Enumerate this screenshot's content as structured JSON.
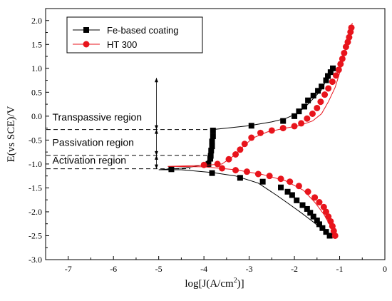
{
  "chart_data": {
    "type": "line",
    "xlabel": "log[J(A/cm2)]",
    "xlabel_main": "log[J(A/cm",
    "xlabel_sup": "2",
    "xlabel_end": ")]",
    "ylabel": "E(vs SCE)/V",
    "xlim": [
      -7.5,
      0
    ],
    "ylim": [
      -3.0,
      2.25
    ],
    "x_ticks": [
      -7,
      -6,
      -5,
      -4,
      -3,
      -2,
      -1,
      0
    ],
    "x_tick_labels": [
      "-7",
      "-6",
      "-5",
      "-4",
      "-3",
      "-2",
      "-1",
      "0"
    ],
    "y_ticks": [
      -3.0,
      -2.5,
      -2.0,
      -1.5,
      -1.0,
      -0.5,
      0.0,
      0.5,
      1.0,
      1.5,
      2.0
    ],
    "y_tick_labels": [
      "-3.0",
      "-2.5",
      "-2.0",
      "-1.5",
      "-1.0",
      "-0.5",
      "0.0",
      "0.5",
      "1.0",
      "1.5",
      "2.0"
    ],
    "grid": false,
    "legend_position": "top-left",
    "series": [
      {
        "name": "Fe-based coating",
        "color": "#000000",
        "marker": "square",
        "curve": [
          [
            -1.22,
            -2.5
          ],
          [
            -1.4,
            -2.35
          ],
          [
            -1.6,
            -2.2
          ],
          [
            -1.85,
            -2.02
          ],
          [
            -2.1,
            -1.85
          ],
          [
            -2.4,
            -1.65
          ],
          [
            -2.8,
            -1.4
          ],
          [
            -3.3,
            -1.25
          ],
          [
            -3.8,
            -1.18
          ],
          [
            -4.5,
            -1.12
          ],
          [
            -5.0,
            -1.12
          ],
          [
            -4.4,
            -1.08
          ],
          [
            -4.0,
            -1.02
          ],
          [
            -3.9,
            -0.9
          ],
          [
            -3.85,
            -0.7
          ],
          [
            -3.8,
            -0.5
          ],
          [
            -3.8,
            -0.28
          ],
          [
            -3.5,
            -0.25
          ],
          [
            -3.0,
            -0.2
          ],
          [
            -2.5,
            -0.12
          ],
          [
            -2.2,
            -0.05
          ],
          [
            -1.95,
            0.05
          ],
          [
            -1.75,
            0.2
          ],
          [
            -1.55,
            0.4
          ],
          [
            -1.4,
            0.55
          ],
          [
            -1.3,
            0.75
          ],
          [
            -1.2,
            0.9
          ],
          [
            -1.15,
            1.0
          ]
        ],
        "markers": [
          [
            -1.22,
            -2.5
          ],
          [
            -1.3,
            -2.42
          ],
          [
            -1.38,
            -2.34
          ],
          [
            -1.45,
            -2.26
          ],
          [
            -1.5,
            -2.18
          ],
          [
            -1.58,
            -2.1
          ],
          [
            -1.65,
            -2.02
          ],
          [
            -1.72,
            -1.94
          ],
          [
            -1.82,
            -1.86
          ],
          [
            -1.95,
            -1.76
          ],
          [
            -2.05,
            -1.65
          ],
          [
            -2.15,
            -1.58
          ],
          [
            -2.3,
            -1.49
          ],
          [
            -2.7,
            -1.37
          ],
          [
            -3.2,
            -1.29
          ],
          [
            -3.82,
            -1.19
          ],
          [
            -4.72,
            -1.11
          ],
          [
            -3.9,
            -1.0
          ],
          [
            -3.86,
            -0.89
          ],
          [
            -3.85,
            -0.83
          ],
          [
            -3.84,
            -0.72
          ],
          [
            -3.82,
            -0.63
          ],
          [
            -3.82,
            -0.53
          ],
          [
            -3.8,
            -0.42
          ],
          [
            -3.8,
            -0.3
          ],
          [
            -2.95,
            -0.2
          ],
          [
            -2.25,
            -0.1
          ],
          [
            -2.0,
            0.0
          ],
          [
            -1.9,
            0.1
          ],
          [
            -1.78,
            0.2
          ],
          [
            -1.7,
            0.33
          ],
          [
            -1.58,
            0.43
          ],
          [
            -1.48,
            0.53
          ],
          [
            -1.4,
            0.62
          ],
          [
            -1.3,
            0.75
          ],
          [
            -1.26,
            0.84
          ],
          [
            -1.2,
            0.92
          ],
          [
            -1.15,
            1.0
          ]
        ]
      },
      {
        "name": "HT 300",
        "color": "#e8141c",
        "marker": "circle",
        "curve": [
          [
            -1.1,
            -2.5
          ],
          [
            -1.2,
            -2.3
          ],
          [
            -1.35,
            -2.05
          ],
          [
            -1.55,
            -1.8
          ],
          [
            -1.8,
            -1.55
          ],
          [
            -2.2,
            -1.35
          ],
          [
            -2.7,
            -1.22
          ],
          [
            -3.3,
            -1.12
          ],
          [
            -4.0,
            -1.06
          ],
          [
            -4.8,
            -1.05
          ],
          [
            -4.0,
            -1.03
          ],
          [
            -3.6,
            -1.0
          ],
          [
            -3.3,
            -0.8
          ],
          [
            -3.1,
            -0.6
          ],
          [
            -2.9,
            -0.45
          ],
          [
            -2.6,
            -0.33
          ],
          [
            -2.2,
            -0.25
          ],
          [
            -1.9,
            -0.2
          ],
          [
            -1.6,
            -0.1
          ],
          [
            -1.4,
            0.05
          ],
          [
            -1.25,
            0.3
          ],
          [
            -1.1,
            0.6
          ],
          [
            -1.0,
            0.9
          ],
          [
            -0.92,
            1.2
          ],
          [
            -0.85,
            1.45
          ],
          [
            -0.78,
            1.7
          ],
          [
            -0.72,
            1.95
          ]
        ],
        "markers": [
          [
            -1.1,
            -2.5
          ],
          [
            -1.13,
            -2.4
          ],
          [
            -1.16,
            -2.3
          ],
          [
            -1.2,
            -2.2
          ],
          [
            -1.25,
            -2.1
          ],
          [
            -1.3,
            -2.0
          ],
          [
            -1.35,
            -1.9
          ],
          [
            -1.45,
            -1.8
          ],
          [
            -1.55,
            -1.7
          ],
          [
            -1.7,
            -1.58
          ],
          [
            -1.9,
            -1.46
          ],
          [
            -2.1,
            -1.37
          ],
          [
            -2.3,
            -1.31
          ],
          [
            -2.55,
            -1.25
          ],
          [
            -2.8,
            -1.21
          ],
          [
            -3.05,
            -1.16
          ],
          [
            -3.3,
            -1.13
          ],
          [
            -3.6,
            -1.09
          ],
          [
            -4.0,
            -1.02
          ],
          [
            -3.7,
            -1.0
          ],
          [
            -3.45,
            -0.9
          ],
          [
            -3.3,
            -0.8
          ],
          [
            -3.2,
            -0.7
          ],
          [
            -3.1,
            -0.58
          ],
          [
            -2.95,
            -0.45
          ],
          [
            -2.75,
            -0.35
          ],
          [
            -2.5,
            -0.3
          ],
          [
            -2.25,
            -0.25
          ],
          [
            -2.0,
            -0.21
          ],
          [
            -1.85,
            -0.15
          ],
          [
            -1.72,
            -0.05
          ],
          [
            -1.6,
            0.05
          ],
          [
            -1.5,
            0.17
          ],
          [
            -1.42,
            0.3
          ],
          [
            -1.33,
            0.45
          ],
          [
            -1.25,
            0.58
          ],
          [
            -1.16,
            0.72
          ],
          [
            -1.08,
            0.85
          ],
          [
            -1.02,
            0.97
          ],
          [
            -0.98,
            1.09
          ],
          [
            -0.94,
            1.2
          ],
          [
            -0.9,
            1.32
          ],
          [
            -0.86,
            1.45
          ],
          [
            -0.82,
            1.55
          ],
          [
            -0.79,
            1.65
          ],
          [
            -0.76,
            1.76
          ],
          [
            -0.74,
            1.85
          ]
        ]
      }
    ],
    "reference_lines": [
      {
        "name": "passivation-top",
        "y": -0.28
      },
      {
        "name": "passivation-bottom",
        "y": -0.82
      },
      {
        "name": "activation",
        "y": -1.1
      }
    ],
    "region_arrow": {
      "x": -5.05,
      "y_values": [
        0.8,
        -0.28,
        -0.82,
        -1.1
      ]
    },
    "annotations": [
      {
        "name": "transpassive-region-label",
        "text": "Transpassive region",
        "x": -7.35,
        "y": -0.15
      },
      {
        "name": "passivation-region-label",
        "text": "Passivation region",
        "x": -7.35,
        "y": -0.68
      },
      {
        "name": "activation-region-label",
        "text": "Activation region",
        "x": -7.35,
        "y": -1.05
      }
    ]
  }
}
